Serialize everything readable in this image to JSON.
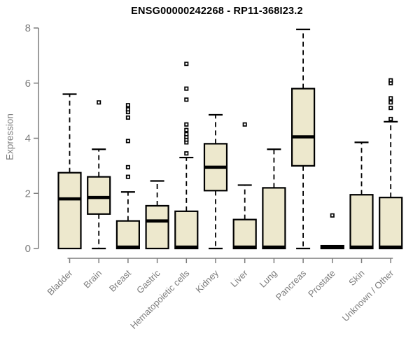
{
  "chart_data": {
    "type": "boxplot",
    "title": "ENSG00000242268 - RP11-368I23.2",
    "ylabel": "Expression",
    "xlabel": "",
    "ylim": [
      0,
      8
    ],
    "yticks": [
      0,
      2,
      4,
      6,
      8
    ],
    "grid": false,
    "legend": "none",
    "outlier_marker": "small-square",
    "categories": [
      "Bladder",
      "Brain",
      "Breast",
      "Gastric",
      "Hematopoietic cells",
      "Kidney",
      "Liver",
      "Lung",
      "Pancreas",
      "Prostate",
      "Skin",
      "Unknown / Other"
    ],
    "boxes": [
      {
        "category": "Bladder",
        "whisker_low": 0,
        "q1": 0,
        "median": 1.8,
        "q3": 2.75,
        "whisker_high": 5.6,
        "outliers": []
      },
      {
        "category": "Brain",
        "whisker_low": 0,
        "q1": 1.25,
        "median": 1.85,
        "q3": 2.6,
        "whisker_high": 3.6,
        "outliers": [
          5.3
        ]
      },
      {
        "category": "Breast",
        "whisker_low": 0,
        "q1": 0,
        "median": 0.05,
        "q3": 1.0,
        "whisker_high": 2.05,
        "outliers": [
          2.6,
          2.95,
          3.9,
          4.75,
          4.95,
          5.05,
          5.2
        ]
      },
      {
        "category": "Gastric",
        "whisker_low": 0,
        "q1": 0,
        "median": 1.0,
        "q3": 1.55,
        "whisker_high": 2.45,
        "outliers": []
      },
      {
        "category": "Hematopoietic cells",
        "whisker_low": 0,
        "q1": 0,
        "median": 0.05,
        "q3": 1.35,
        "whisker_high": 3.3,
        "outliers": [
          3.45,
          3.85,
          3.95,
          4.05,
          4.15,
          4.3,
          4.5,
          5.4,
          5.8,
          6.7
        ]
      },
      {
        "category": "Kidney",
        "whisker_low": 0,
        "q1": 2.1,
        "median": 2.95,
        "q3": 3.8,
        "whisker_high": 4.85,
        "outliers": []
      },
      {
        "category": "Liver",
        "whisker_low": 0,
        "q1": 0,
        "median": 0.05,
        "q3": 1.05,
        "whisker_high": 2.3,
        "outliers": [
          4.5
        ]
      },
      {
        "category": "Lung",
        "whisker_low": 0,
        "q1": 0,
        "median": 0.05,
        "q3": 2.2,
        "whisker_high": 3.6,
        "outliers": []
      },
      {
        "category": "Pancreas",
        "whisker_low": 0,
        "q1": 3.0,
        "median": 4.05,
        "q3": 5.8,
        "whisker_high": 7.95,
        "outliers": []
      },
      {
        "category": "Prostate",
        "whisker_low": 0,
        "q1": 0,
        "median": 0.05,
        "q3": 0.1,
        "whisker_high": 0.1,
        "outliers": [
          1.2
        ]
      },
      {
        "category": "Skin",
        "whisker_low": 0,
        "q1": 0,
        "median": 0.05,
        "q3": 1.95,
        "whisker_high": 3.85,
        "outliers": []
      },
      {
        "category": "Unknown / Other",
        "whisker_low": 0,
        "q1": 0,
        "median": 0.05,
        "q3": 1.85,
        "whisker_high": 4.6,
        "outliers": [
          4.7,
          5.1,
          5.3,
          5.45,
          6.0,
          6.1
        ]
      }
    ],
    "colors": {
      "box_fill": "#EDE8CD",
      "box_border": "#000000",
      "median": "#000000",
      "whisker": "#000000",
      "axis": "#7d7d7d",
      "tick_label": "#7d7d7d",
      "title": "#000000",
      "background": "#ffffff"
    }
  }
}
